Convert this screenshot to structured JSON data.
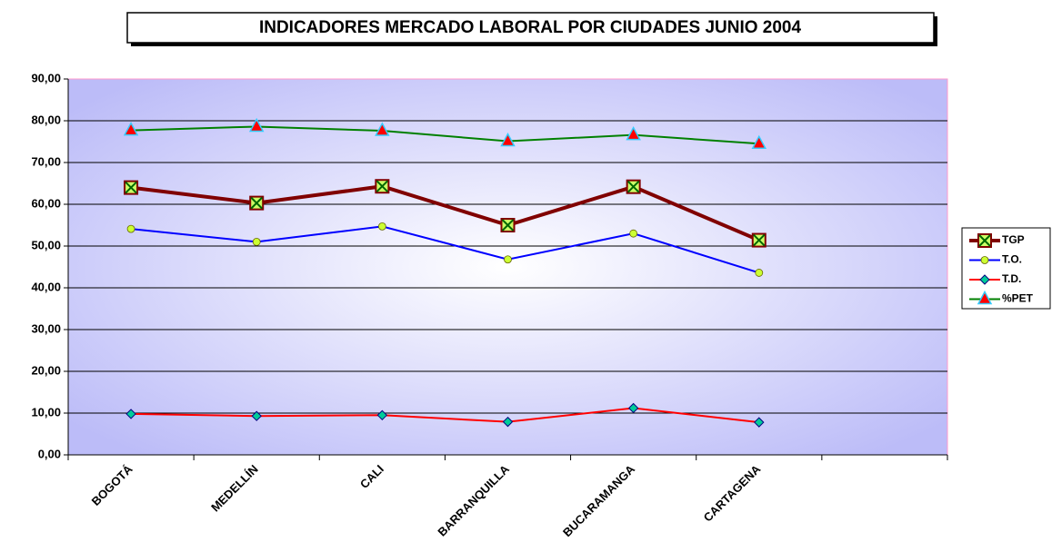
{
  "chart_data": {
    "type": "line",
    "title": "INDICADORES MERCADO LABORAL POR CIUDADES JUNIO 2004",
    "categories": [
      "BOGOTÁ",
      "MEDELLÍN",
      "CALI",
      "BARRANQUILLA",
      "BUCARAMANGA",
      "CARTAGENA",
      null
    ],
    "series": [
      {
        "name": "TGP",
        "color": "#800000",
        "marker": "square",
        "values": [
          64.0,
          60.3,
          64.3,
          55.0,
          64.2,
          51.4,
          null
        ]
      },
      {
        "name": "T.O.",
        "color": "#0000ff",
        "marker": "circle",
        "values": [
          54.1,
          51.0,
          54.7,
          46.8,
          53.0,
          43.6,
          null
        ]
      },
      {
        "name": "T.D.",
        "color": "#ff0000",
        "marker": "diamond",
        "values": [
          9.8,
          9.3,
          9.5,
          7.9,
          11.2,
          7.8,
          null
        ]
      },
      {
        "name": "%PET",
        "color": "#008000",
        "marker": "triangle",
        "values": [
          77.7,
          78.6,
          77.6,
          75.1,
          76.6,
          74.5,
          null
        ]
      }
    ],
    "ylim": [
      0,
      90
    ],
    "yticks": [
      {
        "value": 0,
        "label": "0,00"
      },
      {
        "value": 10,
        "label": "10,00"
      },
      {
        "value": 20,
        "label": "20,00"
      },
      {
        "value": 30,
        "label": "30,00"
      },
      {
        "value": 40,
        "label": "40,00"
      },
      {
        "value": 50,
        "label": "50,00"
      },
      {
        "value": 60,
        "label": "60,00"
      },
      {
        "value": 70,
        "label": "70,00"
      },
      {
        "value": 80,
        "label": "80,00"
      },
      {
        "value": 90,
        "label": "90,00"
      }
    ],
    "grid": true,
    "legend": "right"
  }
}
